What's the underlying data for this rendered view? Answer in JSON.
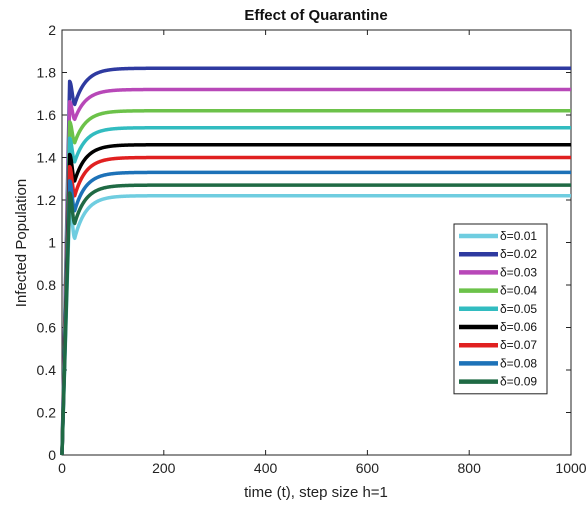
{
  "chart_data": {
    "type": "line",
    "title": "Effect of Quarantine",
    "xlabel": "time (t), step size h=1",
    "ylabel": "Infected Population",
    "xlim": [
      0,
      1000
    ],
    "ylim": [
      0,
      2
    ],
    "xticks": [
      "0",
      "200",
      "400",
      "600",
      "800",
      "1000"
    ],
    "yticks": [
      "0",
      "0.2",
      "0.4",
      "0.6",
      "0.8",
      "1",
      "1.2",
      "1.4",
      "1.6",
      "1.8",
      "2"
    ],
    "grid": false,
    "legend_position": "right-middle",
    "series": [
      {
        "name": "δ=0.01",
        "color": "#6fcde0",
        "steady": 1.22,
        "dip": 1.02
      },
      {
        "name": "δ=0.02",
        "color": "#2e3aa0",
        "steady": 1.82,
        "dip": 1.65
      },
      {
        "name": "δ=0.03",
        "color": "#b848b8",
        "steady": 1.72,
        "dip": 1.58
      },
      {
        "name": "δ=0.04",
        "color": "#6cc24a",
        "steady": 1.62,
        "dip": 1.47
      },
      {
        "name": "δ=0.05",
        "color": "#32bcc0",
        "steady": 1.54,
        "dip": 1.38
      },
      {
        "name": "δ=0.06",
        "color": "#000000",
        "steady": 1.46,
        "dip": 1.29
      },
      {
        "name": "δ=0.07",
        "color": "#e02020",
        "steady": 1.4,
        "dip": 1.22
      },
      {
        "name": "δ=0.08",
        "color": "#1d72b8",
        "steady": 1.33,
        "dip": 1.15
      },
      {
        "name": "δ=0.09",
        "color": "#1f6a44",
        "steady": 1.27,
        "dip": 1.09
      }
    ]
  }
}
